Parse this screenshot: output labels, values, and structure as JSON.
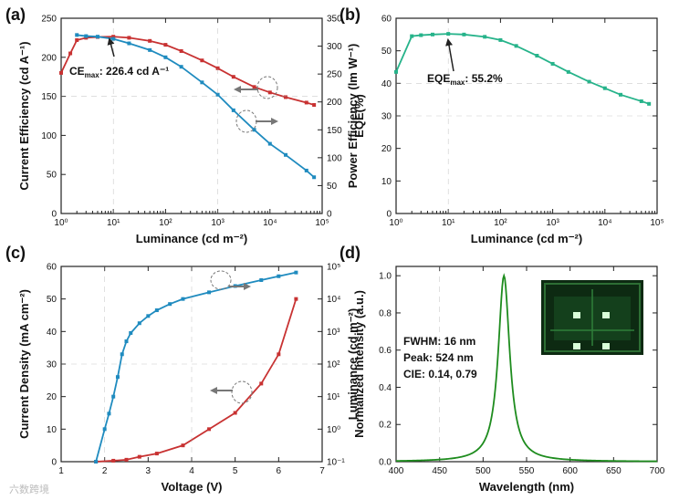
{
  "watermark": "六数跨境",
  "chart_data": [
    {
      "id": "a",
      "panel_label": "(a)",
      "type": "line",
      "xlabel": "Luminance (cd m⁻²)",
      "xscale": "log",
      "xlim": [
        1,
        100000
      ],
      "x_ticks": [
        1,
        10,
        100,
        1000,
        10000,
        100000
      ],
      "x_tick_labels": [
        "10⁰",
        "10¹",
        "10²",
        "10³",
        "10⁴",
        "10⁵"
      ],
      "ylabel": "Current Efficiency (cd A⁻¹)",
      "ylim": [
        0,
        250
      ],
      "y_ticks": [
        0,
        50,
        100,
        150,
        200,
        250
      ],
      "y2label": "Power Efficiency (lm W⁻¹)",
      "y2lim": [
        0,
        350
      ],
      "y2_ticks": [
        0,
        50,
        100,
        150,
        200,
        250,
        300,
        350
      ],
      "series": [
        {
          "name": "Current Efficiency",
          "axis": "left",
          "color": "#c83232",
          "x": [
            1,
            1.5,
            2,
            3,
            5,
            10,
            20,
            50,
            100,
            200,
            500,
            1000,
            2000,
            5000,
            10000,
            20000,
            50000,
            70000
          ],
          "y": [
            180,
            205,
            222,
            225,
            226,
            226.4,
            225,
            221,
            216,
            208,
            196,
            186,
            175,
            162,
            155,
            149,
            142,
            139
          ]
        },
        {
          "name": "Power Efficiency",
          "axis": "right",
          "color": "#1f8bbf",
          "x": [
            2,
            3,
            5,
            10,
            20,
            50,
            100,
            200,
            500,
            1000,
            2000,
            5000,
            10000,
            20000,
            50000,
            70000
          ],
          "y": [
            320,
            318,
            317,
            313,
            305,
            293,
            280,
            263,
            235,
            213,
            185,
            150,
            125,
            105,
            77,
            65
          ]
        }
      ],
      "annotations": [
        {
          "text": "CE",
          "sub": "max",
          "rest": ": 226.4 cd A⁻¹"
        }
      ]
    },
    {
      "id": "b",
      "panel_label": "(b)",
      "type": "line",
      "xlabel": "Luminance (cd m⁻²)",
      "xscale": "log",
      "xlim": [
        1,
        100000
      ],
      "x_ticks": [
        1,
        10,
        100,
        1000,
        10000,
        100000
      ],
      "x_tick_labels": [
        "10⁰",
        "10¹",
        "10²",
        "10³",
        "10⁴",
        "10⁵"
      ],
      "ylabel": "EQE(%)",
      "ylim": [
        0,
        60
      ],
      "y_ticks": [
        0,
        10,
        20,
        30,
        40,
        50,
        60
      ],
      "series": [
        {
          "name": "EQE",
          "color": "#26b38a",
          "x": [
            1,
            2,
            3,
            5,
            10,
            20,
            50,
            100,
            200,
            500,
            1000,
            2000,
            5000,
            10000,
            20000,
            50000,
            70000
          ],
          "y": [
            43.5,
            54.5,
            54.8,
            55,
            55.2,
            55,
            54.3,
            53.3,
            51.5,
            48.5,
            46,
            43.5,
            40.5,
            38.5,
            36.5,
            34.5,
            33.7
          ]
        }
      ],
      "annotations": [
        {
          "text": "EQE",
          "sub": "max",
          "rest": ": 55.2%"
        }
      ]
    },
    {
      "id": "c",
      "panel_label": "(c)",
      "type": "line",
      "xlabel": "Voltage (V)",
      "xlim": [
        1,
        7
      ],
      "x_ticks": [
        1,
        2,
        3,
        4,
        5,
        6,
        7
      ],
      "ylabel": "Current Density (mA cm⁻²)",
      "ylim": [
        0,
        60
      ],
      "y_ticks": [
        0,
        10,
        20,
        30,
        40,
        50,
        60
      ],
      "y2label": "Luminance (cd m⁻²)",
      "y2scale": "log",
      "y2lim": [
        0.1,
        100000
      ],
      "y2_ticks": [
        0.1,
        1,
        10,
        100,
        1000,
        10000,
        100000
      ],
      "y2_tick_labels": [
        "10⁻¹",
        "10⁰",
        "10¹",
        "10²",
        "10³",
        "10⁴",
        "10⁵"
      ],
      "series": [
        {
          "name": "Current Density",
          "axis": "left",
          "color": "#c83232",
          "x": [
            1.8,
            2.2,
            2.5,
            2.8,
            3.2,
            3.8,
            4.4,
            5.0,
            5.6,
            6.0,
            6.4
          ],
          "y": [
            0,
            0.3,
            0.6,
            1.5,
            2.5,
            5,
            10,
            15,
            24,
            33,
            50
          ]
        },
        {
          "name": "Luminance",
          "axis": "right",
          "color": "#1f8bbf",
          "x": [
            1.8,
            2.0,
            2.1,
            2.2,
            2.3,
            2.4,
            2.5,
            2.6,
            2.8,
            3.0,
            3.2,
            3.5,
            3.8,
            4.4,
            5.0,
            5.6,
            6.0,
            6.4
          ],
          "y": [
            0.1,
            1,
            3,
            10,
            40,
            200,
            500,
            900,
            1800,
            3000,
            4500,
            7000,
            10000,
            16000,
            25000,
            38000,
            50000,
            65000
          ]
        }
      ]
    },
    {
      "id": "d",
      "panel_label": "(d)",
      "type": "line",
      "xlabel": "Wavelength (nm)",
      "xlim": [
        400,
        700
      ],
      "x_ticks": [
        400,
        450,
        500,
        550,
        600,
        650,
        700
      ],
      "ylabel": "Normalized Intensity (a.u.)",
      "ylim": [
        0,
        1.05
      ],
      "y_ticks": [
        0,
        0.2,
        0.4,
        0.6,
        0.8,
        1.0
      ],
      "y_tick_labels": [
        "0.0",
        "0.2",
        "0.4",
        "0.6",
        "0.8",
        "1.0"
      ],
      "series": [
        {
          "name": "EL spectrum",
          "color": "#1e8c1e",
          "peak": 524,
          "fwhm": 16
        }
      ],
      "annotations": [
        {
          "text": "FWHM: 16 nm"
        },
        {
          "text": "Peak: 524 nm"
        },
        {
          "text": "CIE: 0.14, 0.79"
        }
      ]
    }
  ]
}
